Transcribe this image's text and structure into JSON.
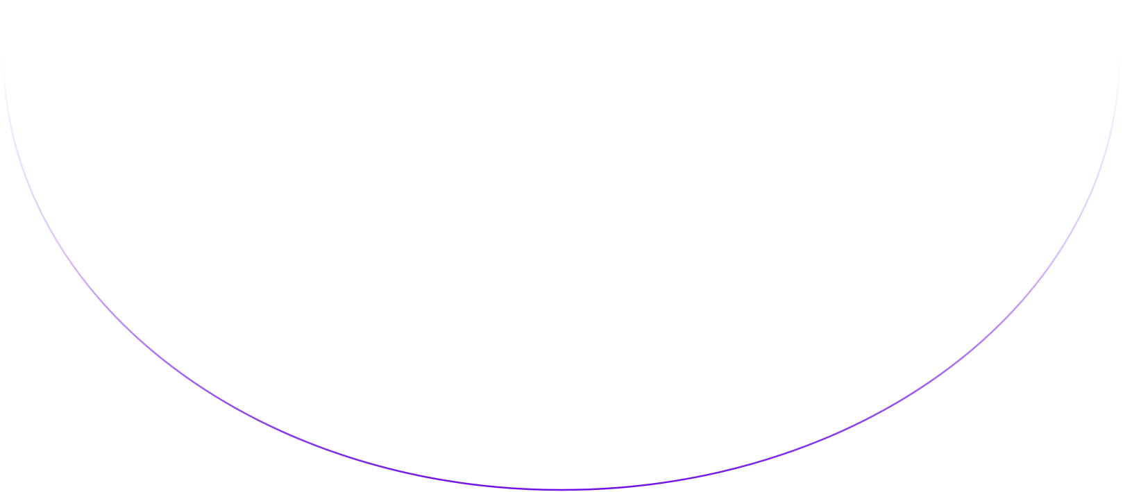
{
  "decoration": {
    "shape": "half-ellipse-arc",
    "stroke_color": "#6f0fe6",
    "fade_color": "#ffffff"
  }
}
